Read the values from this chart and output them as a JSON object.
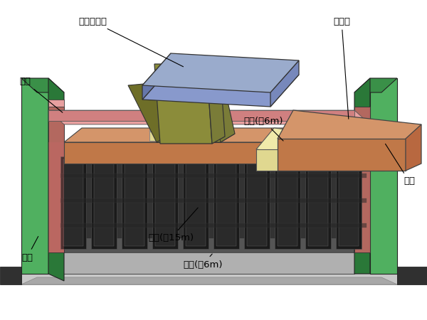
{
  "background_color": "#ffffff",
  "labels": {
    "san_suo_an_zhi_dun": "散索鞍支墩",
    "qian_mao_shi": "前锚室",
    "mao_liang": "帽梁",
    "ding_ban": "顶板(厚6m)",
    "tian_xin": "填芯(厚15m)",
    "di_ban": "底板(厚6m)",
    "nei_chen": "内衬",
    "lian_qiang": "连墙"
  },
  "colors": {
    "blue_top": "#8899cc",
    "blue_front": "#6677aa",
    "blue_side": "#99aadd",
    "olive_top": "#8b8c3a",
    "olive_front": "#6e6e28",
    "olive_side": "#7a7c38",
    "yellow_light": "#f0eaaa",
    "yellow_mid": "#e0d890",
    "yellow_dark": "#c8c070",
    "orange_top": "#d4956a",
    "orange_front": "#c07848",
    "orange_side": "#b86840",
    "pink_top": "#e8a0a0",
    "pink_front": "#d08080",
    "green_face": "#50b060",
    "green_side": "#3a9048",
    "green_dark_face": "#2a7838",
    "red_face": "#cc6666",
    "red_dark": "#aa4444",
    "gray_top": "#888888",
    "gray_fill": "#505050",
    "gray_floor": "#909090",
    "gray_light": "#b0b0b0",
    "dark_col": "#1e1e1e",
    "black": "#111111"
  },
  "figsize": [
    6.0,
    4.5
  ],
  "dpi": 100
}
